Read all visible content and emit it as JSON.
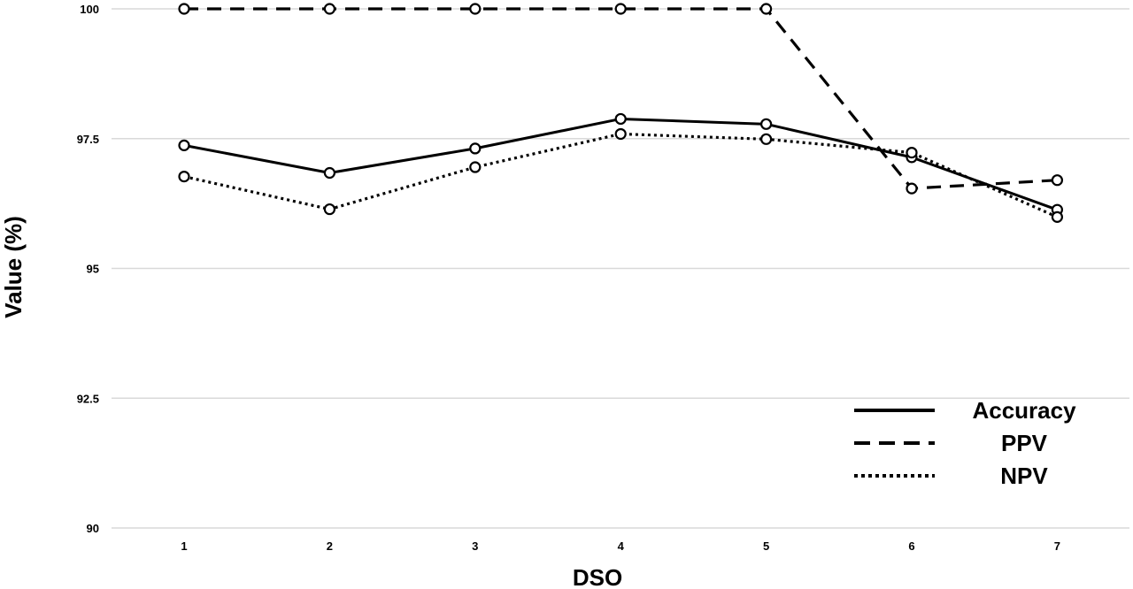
{
  "chart_data": {
    "type": "line",
    "xlabel": "DSO",
    "ylabel": "Value (%)",
    "x": [
      1,
      2,
      3,
      4,
      5,
      6,
      7
    ],
    "ylim": [
      90,
      100
    ],
    "yticks": [
      90,
      92.5,
      95,
      97.5,
      100
    ],
    "grid": true,
    "legend_position": "bottom-right",
    "series": [
      {
        "name": "Accuracy",
        "style": "solid",
        "values": [
          97.37,
          96.84,
          97.31,
          97.88,
          97.78,
          97.14,
          96.13
        ]
      },
      {
        "name": "PPV",
        "style": "dashed",
        "values": [
          100,
          100,
          100,
          100,
          100,
          96.54,
          96.7
        ]
      },
      {
        "name": "NPV",
        "style": "dotted",
        "values": [
          96.77,
          96.14,
          96.95,
          97.59,
          97.49,
          97.23,
          95.99
        ]
      }
    ],
    "colors": {
      "line": "#000000",
      "marker_fill": "#ffffff",
      "grid": "#d9d9d9"
    }
  }
}
